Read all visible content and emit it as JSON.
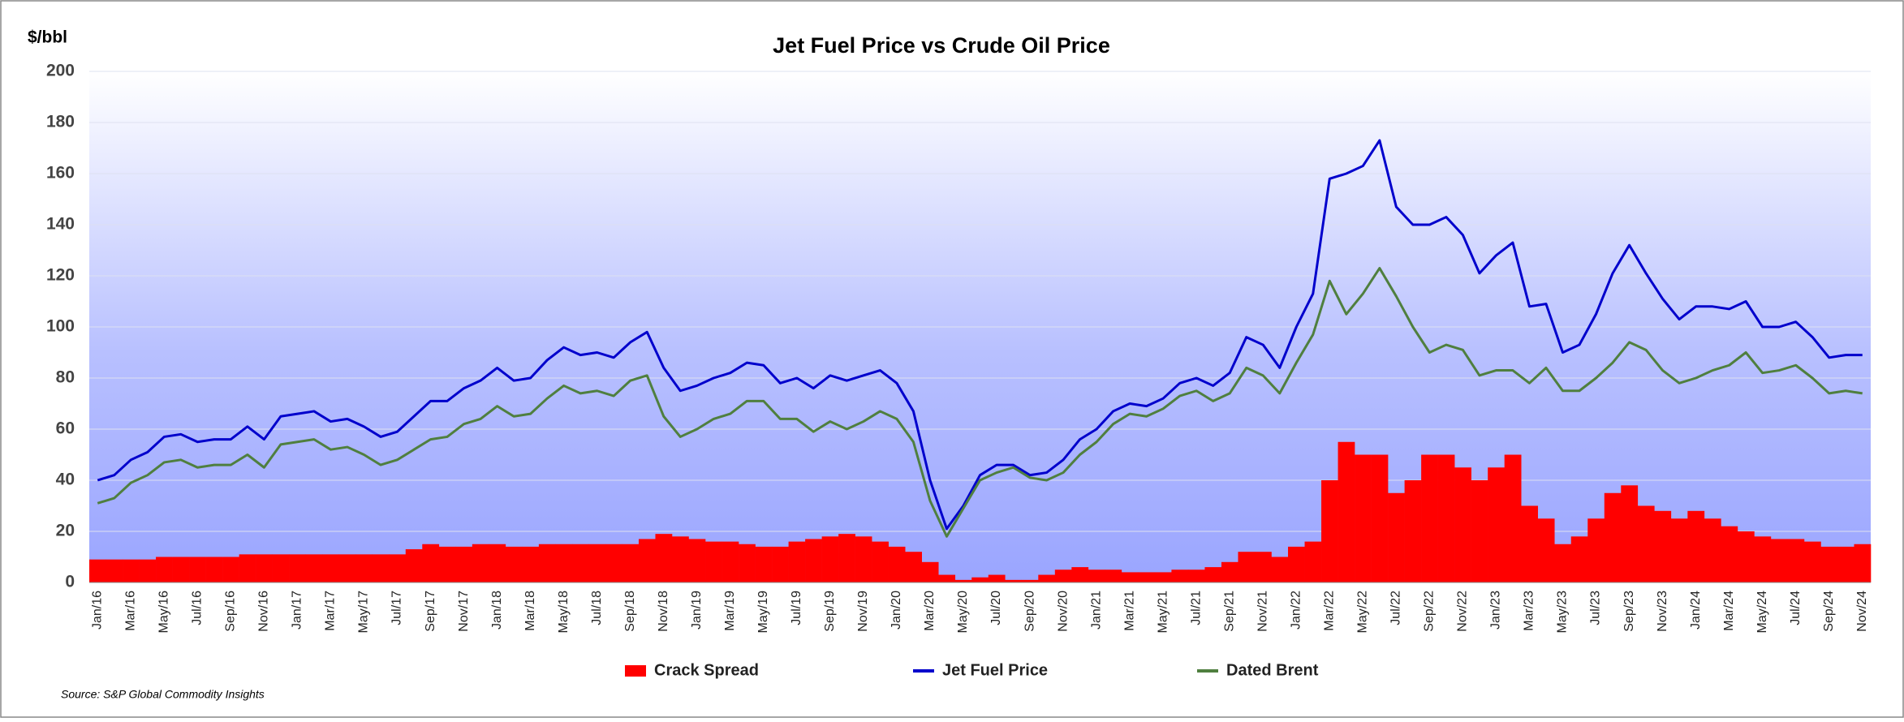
{
  "chart_data": {
    "type": "combo",
    "title": "Jet Fuel Price vs Crude Oil Price",
    "y_label": "$/bbl",
    "source": "Source:  S&P Global Commodity Insights",
    "categories": [
      "Jan/16",
      null,
      "Mar/16",
      null,
      "May/16",
      null,
      "Jul/16",
      null,
      "Sep/16",
      null,
      "Nov/16",
      null,
      "Jan/17",
      null,
      "Mar/17",
      null,
      "May/17",
      null,
      "Jul/17",
      null,
      "Sep/17",
      null,
      "Nov/17",
      null,
      "Jan/18",
      null,
      "Mar/18",
      null,
      "May/18",
      null,
      "Jul/18",
      null,
      "Sep/18",
      null,
      "Nov/18",
      null,
      "Jan/19",
      null,
      "Mar/19",
      null,
      "May/19",
      null,
      "Jul/19",
      null,
      "Sep/19",
      null,
      "Nov/19",
      null,
      "Jan/20",
      null,
      "Mar/20",
      null,
      "May/20",
      null,
      "Jul/20",
      null,
      "Sep/20",
      null,
      "Nov/20",
      null,
      "Jan/21",
      null,
      "Mar/21",
      null,
      "May/21",
      null,
      "Jul/21",
      null,
      "Sep/21",
      null,
      "Nov/21",
      null,
      "Jan/22",
      null,
      "Mar/22",
      null,
      "May/22",
      null,
      "Jul/22",
      null,
      "Sep/22",
      null,
      "Nov/22",
      null,
      "Jan/23",
      null,
      "Mar/23",
      null,
      "May/23",
      null,
      "Jul/23",
      null,
      "Sep/23",
      null,
      "Nov/23",
      null,
      "Jan/24",
      null,
      "Mar/24",
      null,
      "May/24",
      null,
      "Jul/24",
      null,
      "Sep/24",
      null,
      "Nov/24"
    ],
    "series": [
      {
        "name": "Crack Spread",
        "type": "bar",
        "color": "#ff0000",
        "values": [
          9,
          9,
          9,
          9,
          10,
          10,
          10,
          10,
          10,
          11,
          11,
          11,
          11,
          11,
          11,
          11,
          11,
          11,
          11,
          13,
          15,
          14,
          14,
          15,
          15,
          14,
          14,
          15,
          15,
          15,
          15,
          15,
          15,
          17,
          19,
          18,
          17,
          16,
          16,
          15,
          14,
          14,
          16,
          17,
          18,
          19,
          18,
          16,
          14,
          12,
          8,
          3,
          1,
          2,
          3,
          1,
          1,
          3,
          5,
          6,
          5,
          5,
          4,
          4,
          4,
          5,
          5,
          6,
          8,
          12,
          12,
          10,
          14,
          16,
          40,
          55,
          50,
          50,
          35,
          40,
          50,
          50,
          45,
          40,
          45,
          50,
          30,
          25,
          15,
          18,
          25,
          35,
          38,
          30,
          28,
          25,
          28,
          25,
          22,
          20,
          18,
          17,
          17,
          16,
          14,
          14,
          15
        ]
      },
      {
        "name": "Jet Fuel Price",
        "type": "line",
        "color": "#0000cc",
        "values": [
          40,
          42,
          48,
          51,
          57,
          58,
          55,
          56,
          56,
          61,
          56,
          65,
          66,
          67,
          63,
          64,
          61,
          57,
          59,
          65,
          71,
          71,
          76,
          79,
          84,
          79,
          80,
          87,
          92,
          89,
          90,
          88,
          94,
          98,
          84,
          75,
          77,
          80,
          82,
          86,
          85,
          78,
          80,
          76,
          81,
          79,
          81,
          83,
          78,
          67,
          40,
          21,
          30,
          42,
          46,
          46,
          42,
          43,
          48,
          56,
          60,
          67,
          70,
          69,
          72,
          78,
          80,
          77,
          82,
          96,
          93,
          84,
          100,
          113,
          158,
          160,
          163,
          173,
          147,
          140,
          140,
          143,
          136,
          121,
          128,
          133,
          108,
          109,
          90,
          93,
          105,
          121,
          132,
          121,
          111,
          103,
          108,
          108,
          107,
          110,
          100,
          100,
          102,
          96,
          88,
          89,
          89
        ]
      },
      {
        "name": "Dated Brent",
        "type": "line",
        "color": "#4f7f3f",
        "values": [
          31,
          33,
          39,
          42,
          47,
          48,
          45,
          46,
          46,
          50,
          45,
          54,
          55,
          56,
          52,
          53,
          50,
          46,
          48,
          52,
          56,
          57,
          62,
          64,
          69,
          65,
          66,
          72,
          77,
          74,
          75,
          73,
          79,
          81,
          65,
          57,
          60,
          64,
          66,
          71,
          71,
          64,
          64,
          59,
          63,
          60,
          63,
          67,
          64,
          55,
          32,
          18,
          29,
          40,
          43,
          45,
          41,
          40,
          43,
          50,
          55,
          62,
          66,
          65,
          68,
          73,
          75,
          71,
          74,
          84,
          81,
          74,
          86,
          97,
          118,
          105,
          113,
          123,
          112,
          100,
          90,
          93,
          91,
          81,
          83,
          83,
          78,
          84,
          75,
          75,
          80,
          86,
          94,
          91,
          83,
          78,
          80,
          83,
          85,
          90,
          82,
          83,
          85,
          80,
          74,
          75,
          74
        ]
      }
    ],
    "ylim": [
      0,
      200
    ],
    "yticks": [
      0,
      20,
      40,
      60,
      80,
      100,
      120,
      140,
      160,
      180,
      200
    ],
    "grid": true,
    "legend": "bottom"
  }
}
